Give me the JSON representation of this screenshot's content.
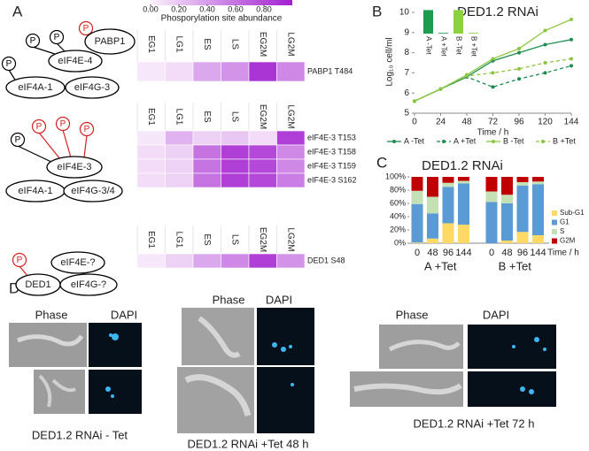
{
  "panel_labels": [
    "A",
    "B",
    "C",
    "D"
  ],
  "diagrams": [
    {
      "nodes": [
        "eIF4E-4",
        "eIF4A-1",
        "eIF4G-3",
        "PABP1"
      ],
      "phospho": [
        "P",
        "P",
        "P",
        "P"
      ]
    },
    {
      "nodes": [
        "eIF4E-3",
        "eIF4A-1",
        "eIF4G-3/4"
      ],
      "phospho": [
        "P",
        "P",
        "P",
        "P"
      ]
    },
    {
      "nodes": [
        "eIF4E-?",
        "DED1",
        "eIF4G-?"
      ],
      "phospho": [
        "P"
      ]
    }
  ],
  "chart_data": [
    {
      "type": "heatmap",
      "colorbar_title": "Phosporylation site abundance",
      "colorbar_ticks": [
        {
          "value": 0,
          "label": "0.00"
        },
        {
          "value": 0.2,
          "label": "0.20"
        },
        {
          "value": 0.4,
          "label": "0.40"
        },
        {
          "value": 0.6,
          "label": "0.60"
        },
        {
          "value": 0.8,
          "label": "0.80"
        }
      ],
      "clim": [
        0,
        1
      ],
      "colors": [
        "#fbf1fc",
        "#a21fd0"
      ],
      "columns": [
        "EG1",
        "LG1",
        "ES",
        "LS",
        "EG2M",
        "LG2M"
      ],
      "rows": [
        "PABP1 T484"
      ],
      "values": [
        [
          0.05,
          0.1,
          0.35,
          0.45,
          0.9,
          0.5
        ]
      ]
    },
    {
      "type": "heatmap",
      "clim": [
        0,
        1
      ],
      "colors": [
        "#fbf1fc",
        "#a21fd0"
      ],
      "columns": [
        "EG1",
        "LG1",
        "ES",
        "LS",
        "EG2M",
        "LG2M"
      ],
      "rows": [
        "eIF4E-3 T153",
        "eIF4E-3 T158",
        "eIF4E-3 T159",
        "eIF4E-3 S162"
      ],
      "values": [
        [
          0.05,
          0.3,
          0.15,
          0.2,
          0.1,
          0.85
        ],
        [
          0.1,
          0.15,
          0.6,
          0.85,
          0.8,
          0.5
        ],
        [
          0.1,
          0.15,
          0.6,
          0.85,
          0.8,
          0.5
        ],
        [
          0.1,
          0.15,
          0.6,
          0.85,
          0.8,
          0.55
        ]
      ]
    },
    {
      "type": "heatmap",
      "clim": [
        0,
        1
      ],
      "colors": [
        "#fbf1fc",
        "#a21fd0"
      ],
      "columns": [
        "EG1",
        "LG1",
        "ES",
        "LS",
        "EG2M",
        "LG2M"
      ],
      "rows": [
        "DED1 S48"
      ],
      "values": [
        [
          0.05,
          0.15,
          0.35,
          0.5,
          0.85,
          0.45
        ]
      ]
    },
    {
      "type": "line",
      "title": "DED1.2 RNAi",
      "xlabel": "Time / h",
      "ylabel": "Log₁₀ cell/ml",
      "x": [
        0,
        24,
        48,
        72,
        96,
        120,
        144
      ],
      "xlim": [
        0,
        144
      ],
      "xticks": [
        0,
        24,
        48,
        72,
        96,
        120,
        144
      ],
      "ylim": [
        5,
        10
      ],
      "yticks": [
        5,
        6,
        7,
        8,
        9,
        10
      ],
      "series": [
        {
          "name": "A -Tet",
          "color": "#1e8c4e",
          "line_style": "solid",
          "values": [
            5.6,
            6.2,
            6.8,
            7.6,
            8.0,
            8.4,
            8.65
          ]
        },
        {
          "name": "A +Tet",
          "color": "#1e8c4e",
          "line_style": "dashed",
          "values": [
            5.6,
            6.2,
            6.8,
            6.3,
            6.7,
            7.0,
            7.35
          ]
        },
        {
          "name": "B -Tet",
          "color": "#8cc63f",
          "line_style": "solid",
          "values": [
            5.6,
            6.2,
            6.9,
            7.7,
            8.2,
            9.1,
            9.65
          ]
        },
        {
          "name": "B +Tet",
          "color": "#8cc63f",
          "line_style": "dashed",
          "values": [
            5.6,
            6.2,
            6.85,
            7.0,
            7.2,
            7.5,
            7.7
          ]
        }
      ]
    },
    {
      "type": "bar",
      "categories": [
        "A -Tet",
        "A +Tet",
        "B -Tet",
        "B +Tet"
      ],
      "values": [
        0.95,
        0.03,
        0.95,
        0.03
      ],
      "colors": [
        "#1e9c4e",
        "#1e9c4e",
        "#8cd13f",
        "#8cd13f"
      ],
      "ylim": [
        0,
        1
      ]
    },
    {
      "type": "stacked_bar",
      "title": "DED1.2 RNAi",
      "xlabel": "Time / h",
      "categories": [
        "0",
        "48",
        "96",
        "144",
        "0",
        "48",
        "96",
        "144"
      ],
      "groups": [
        "A +Tet",
        "B +Tet"
      ],
      "ylim": [
        0,
        100
      ],
      "yticks": [
        {
          "value": 0,
          "label": "0%"
        },
        {
          "value": 20,
          "label": "20%"
        },
        {
          "value": 40,
          "label": "40%"
        },
        {
          "value": 60,
          "label": "60%"
        },
        {
          "value": 80,
          "label": "80%"
        },
        {
          "value": 100,
          "label": "100%"
        }
      ],
      "series": [
        {
          "name": "Sub-G1",
          "color": "#ffd966",
          "values": [
            1,
            7,
            30,
            28,
            0,
            4,
            17,
            12
          ]
        },
        {
          "name": "G1",
          "color": "#5b9bd5",
          "values": [
            58,
            38,
            55,
            62,
            62,
            56,
            70,
            77
          ]
        },
        {
          "name": "S",
          "color": "#c5e0b4",
          "values": [
            20,
            25,
            6,
            4,
            16,
            13,
            5,
            4
          ]
        },
        {
          "name": "G2M",
          "color": "#c00000",
          "values": [
            21,
            30,
            9,
            6,
            22,
            27,
            8,
            7
          ]
        }
      ]
    }
  ],
  "micrographs": [
    {
      "headers": [
        "Phase",
        "DAPI"
      ],
      "caption": "DED1.2 RNAi - Tet"
    },
    {
      "headers": [
        "Phase",
        "DAPI"
      ],
      "caption": "DED1.2 RNAi +Tet 48 h"
    },
    {
      "headers": [
        "Phase",
        "DAPI"
      ],
      "caption": "DED1.2 RNAi +Tet 72 h"
    }
  ]
}
